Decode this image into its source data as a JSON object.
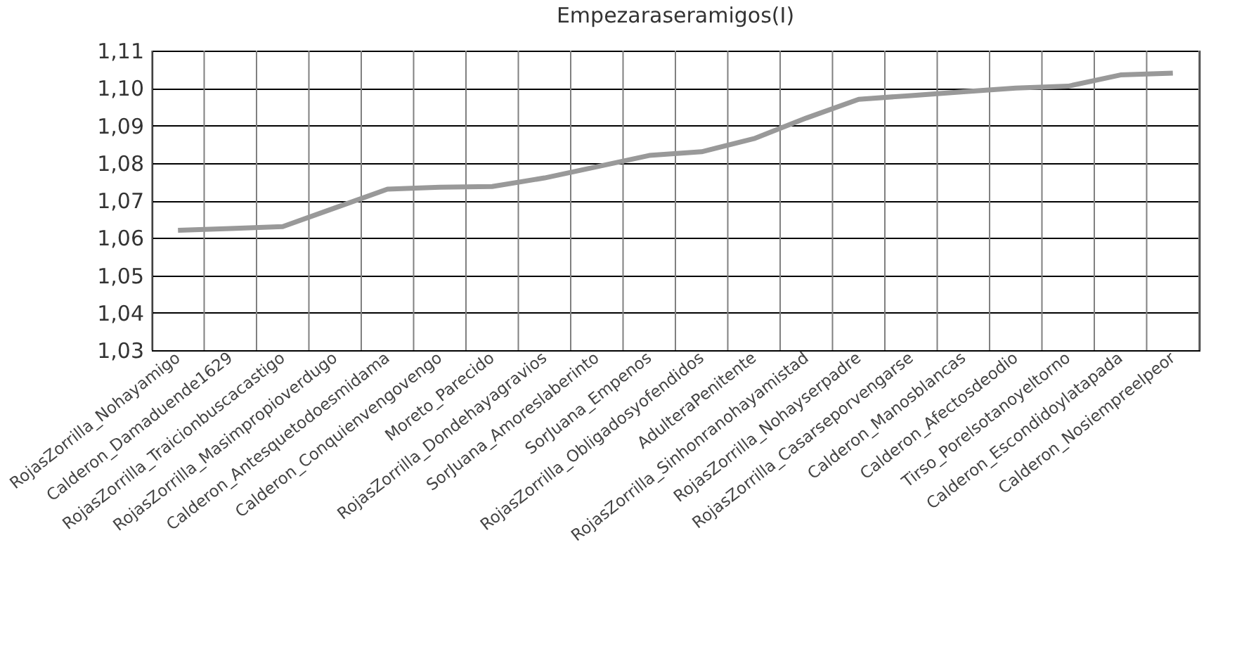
{
  "chart_data": {
    "type": "line",
    "title": "Empezaraseramigos(I)",
    "categories": [
      "RojasZorrilla_Nohayamigo",
      "Calderon_Damaduende1629",
      "RojasZorrilla_Traicionbuscacastigo",
      "RojasZorrilla_Masimpropioverdugo",
      "Calderon_Antesquetodoesmidama",
      "Calderon_Conquienvengovengo",
      "Moreto_Parecido",
      "RojasZorrilla_Dondehayagravios",
      "SorJuana_Amoreslaberinto",
      "SorJuana_Empenos",
      "RojasZorrilla_Obligadosyofendidos",
      "AdulteraPenitente",
      "RojasZorrilla_Sinhonranohayamistad",
      "RojasZorrilla_Nohayserpadre",
      "RojasZorrilla_Casarseporvengarse",
      "Calderon_Manosblancas",
      "Calderon_Afectosdeodio",
      "Tirso_Porelsotanoyeltorno",
      "Calderon_Escondidoylatapada",
      "Calderon_Nosiempreelpeor"
    ],
    "series": [
      {
        "color": "#999999",
        "values": [
          1.062,
          1.0625,
          1.063,
          1.068,
          1.073,
          1.0735,
          1.0737,
          1.076,
          1.079,
          1.082,
          1.083,
          1.0865,
          1.092,
          1.097,
          1.098,
          1.099,
          1.1,
          1.1005,
          1.1035,
          1.104
        ]
      }
    ],
    "ylim": [
      1.03,
      1.11
    ],
    "yticks": [
      {
        "value": 1.03,
        "label": "1,03"
      },
      {
        "value": 1.04,
        "label": "1,04"
      },
      {
        "value": 1.05,
        "label": "1,05"
      },
      {
        "value": 1.06,
        "label": "1,06"
      },
      {
        "value": 1.07,
        "label": "1,07"
      },
      {
        "value": 1.08,
        "label": "1,08"
      },
      {
        "value": 1.09,
        "label": "1,09"
      },
      {
        "value": 1.1,
        "label": "1,10"
      },
      {
        "value": 1.11,
        "label": "1,11"
      }
    ],
    "grid": true,
    "legend": false,
    "marker": "none",
    "line_style": "solid"
  }
}
